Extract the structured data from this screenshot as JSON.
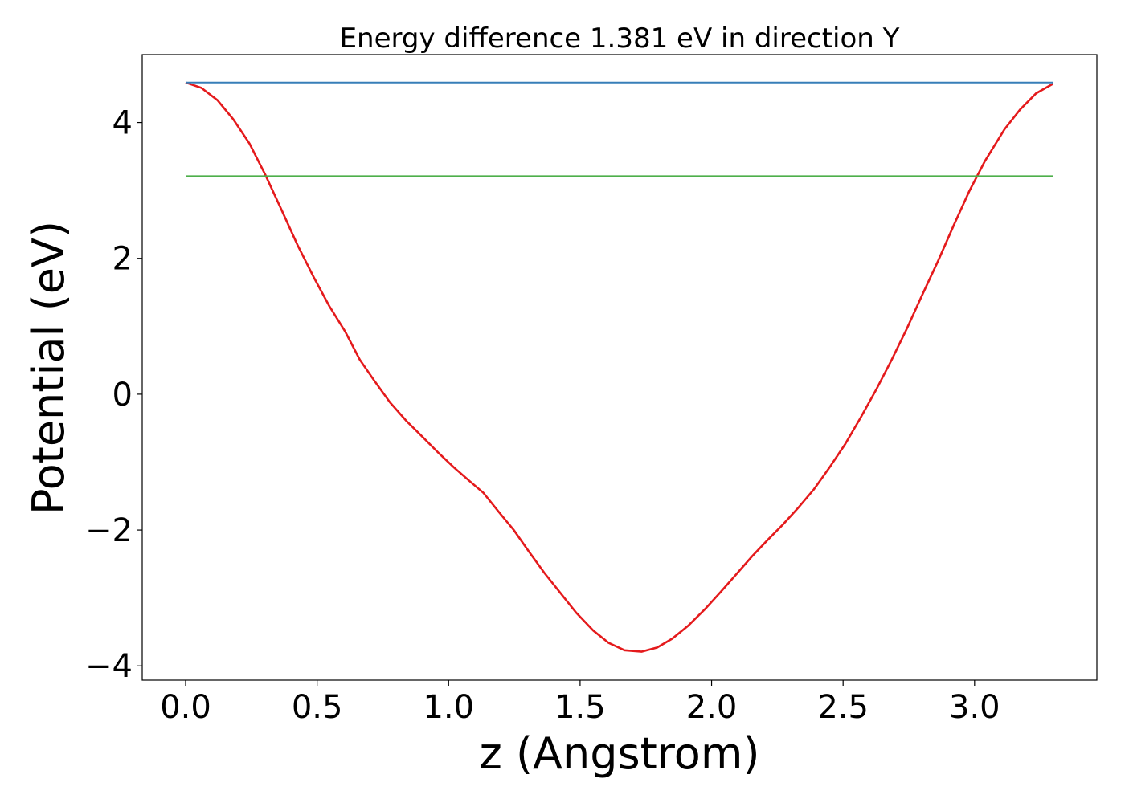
{
  "chart_data": {
    "type": "line",
    "title": "Energy difference 1.381 eV in direction Y",
    "xlabel": "z (Angstrom)",
    "ylabel": "Potential (eV)",
    "xlim": [
      -0.165,
      3.465
    ],
    "ylim": [
      -4.21,
      5.0
    ],
    "xticks": [
      0.0,
      0.5,
      1.0,
      1.5,
      2.0,
      2.5,
      3.0
    ],
    "xtick_labels": [
      "0.0",
      "0.5",
      "1.0",
      "1.5",
      "2.0",
      "2.5",
      "3.0"
    ],
    "yticks": [
      -4,
      -2,
      0,
      2,
      4
    ],
    "ytick_labels": [
      "−4",
      "−2",
      "0",
      "2",
      "4"
    ],
    "grid": false,
    "series": [
      {
        "color": "#e41a1c",
        "x": [
          0.0,
          0.06,
          0.121,
          0.181,
          0.243,
          0.303,
          0.365,
          0.425,
          0.486,
          0.546,
          0.607,
          0.662,
          0.719,
          0.777,
          0.841,
          0.899,
          0.963,
          1.021,
          1.08,
          1.132,
          1.19,
          1.248,
          1.306,
          1.364,
          1.428,
          1.486,
          1.55,
          1.608,
          1.669,
          1.734,
          1.793,
          1.85,
          1.911,
          1.976,
          2.035,
          2.094,
          2.153,
          2.212,
          2.271,
          2.33,
          2.389,
          2.448,
          2.507,
          2.566,
          2.625,
          2.684,
          2.743,
          2.802,
          2.862,
          2.921,
          2.98,
          3.039,
          3.114,
          3.173,
          3.234,
          3.298
        ],
        "y": [
          4.59,
          4.51,
          4.33,
          4.05,
          3.69,
          3.23,
          2.71,
          2.2,
          1.73,
          1.3,
          0.92,
          0.51,
          0.19,
          -0.12,
          -0.4,
          -0.62,
          -0.87,
          -1.08,
          -1.28,
          -1.45,
          -1.73,
          -2.0,
          -2.32,
          -2.63,
          -2.94,
          -3.22,
          -3.48,
          -3.66,
          -3.77,
          -3.79,
          -3.73,
          -3.6,
          -3.41,
          -3.16,
          -2.91,
          -2.65,
          -2.39,
          -2.15,
          -1.92,
          -1.67,
          -1.4,
          -1.08,
          -0.74,
          -0.35,
          0.06,
          0.5,
          0.97,
          1.47,
          1.97,
          2.49,
          2.99,
          3.43,
          3.9,
          4.19,
          4.43,
          4.57
        ]
      },
      {
        "color": "#377eb8",
        "x": [
          0.0,
          3.3
        ],
        "y": [
          4.59,
          4.59
        ]
      },
      {
        "color": "#4daf4a",
        "x": [
          0.0,
          3.3
        ],
        "y": [
          3.21,
          3.21
        ]
      }
    ]
  }
}
